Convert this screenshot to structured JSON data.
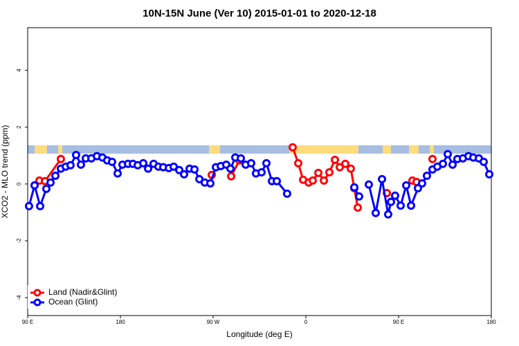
{
  "chart_data": {
    "type": "line",
    "title": "10N-15N June (Ver 10)   2015-01-01 to 2020-12-18",
    "x_label": "Longitude (deg E)",
    "y_label": "XCO2 - MLO trend (ppm)",
    "xlim": [
      90,
      540
    ],
    "xticks": [
      {
        "value": 90,
        "label": "90 E"
      },
      {
        "value": 180,
        "label": "180"
      },
      {
        "value": 270,
        "label": "90 W"
      },
      {
        "value": 360,
        "label": "0"
      },
      {
        "value": 450,
        "label": "90 E"
      },
      {
        "value": 540,
        "label": "180"
      }
    ],
    "ylim": [
      -4.63,
      5.5
    ],
    "yticks": [
      -4,
      -2,
      0,
      2,
      4
    ],
    "legend": "bottom-left",
    "series": [
      {
        "name": "Land (Nadir&Glint)",
        "color": "#ff0000",
        "x": [
          101.4,
          106.8,
          122.2,
          null,
          268.7,
          null,
          287.5,
          295.5,
          null,
          347.2,
          352.6,
          357.3,
          362.7,
          366.7,
          372.1,
          377.5,
          382.8,
          388.2,
          392.9,
          398.3,
          403.6,
          407.0,
          410.4,
          null,
          438.6,
          null,
          463.4,
          467.4,
          null,
          482.9
        ],
        "values": [
          0.12,
          0.1,
          0.88,
          null,
          0.32,
          null,
          0.27,
          0.83,
          null,
          1.29,
          0.73,
          0.15,
          0.05,
          0.12,
          0.39,
          0.12,
          0.41,
          0.85,
          0.59,
          0.71,
          0.54,
          -0.15,
          -0.83,
          null,
          -0.32,
          null,
          0.12,
          0.07,
          null,
          0.88
        ]
      },
      {
        "name": "Ocean (Glint)",
        "color": "#0000ff",
        "x": [
          91.3,
          96.7,
          102.1,
          108.1,
          112.2,
          116.9,
          122.2,
          126.9,
          131.6,
          137.0,
          141.7,
          146.4,
          151.8,
          157.2,
          162.5,
          167.2,
          171.9,
          177.3,
          182.0,
          187.4,
          192.1,
          196.8,
          202.2,
          206.9,
          212.2,
          216.9,
          221.6,
          227.0,
          231.7,
          237.1,
          241.8,
          247.2,
          251.9,
          256.6,
          261.9,
          267.3,
          272.7,
          277.4,
          282.7,
          286.8,
          291.5,
          296.9,
          301.6,
          306.9,
          311.6,
          317.0,
          321.7,
          327.1,
          331.8,
          341.8,
          null,
          407.0,
          411.7,
          null,
          421.1,
          427.8,
          433.9,
          439.9,
          442.6,
          446.6,
          452.0,
          457.4,
          462.1,
          468.8,
          472.8,
          477.5,
          482.9,
          487.6,
          493.0,
          497.7,
          502.4,
          507.1,
          512.4,
          517.8,
          522.5,
          527.9,
          532.6,
          538.0
        ],
        "values": [
          -0.78,
          -0.05,
          -0.78,
          -0.17,
          0.05,
          0.29,
          0.54,
          0.61,
          0.66,
          1.02,
          0.68,
          0.9,
          0.9,
          0.98,
          0.93,
          0.83,
          0.78,
          0.37,
          0.68,
          0.71,
          0.71,
          0.66,
          0.73,
          0.54,
          0.71,
          0.61,
          0.59,
          0.56,
          0.61,
          0.49,
          0.34,
          0.54,
          0.51,
          0.17,
          0.05,
          0.02,
          0.59,
          0.63,
          0.68,
          0.54,
          0.93,
          0.9,
          0.68,
          0.73,
          0.37,
          0.41,
          0.73,
          0.1,
          0.1,
          -0.34,
          null,
          -0.12,
          -0.44,
          null,
          -0.02,
          -1.02,
          0.17,
          -1.07,
          -0.63,
          -0.41,
          -0.76,
          -0.05,
          -0.76,
          -0.15,
          0.02,
          0.29,
          0.51,
          0.61,
          0.71,
          1.05,
          0.68,
          0.88,
          0.9,
          0.98,
          0.93,
          0.9,
          0.78,
          0.34
        ]
      }
    ]
  }
}
